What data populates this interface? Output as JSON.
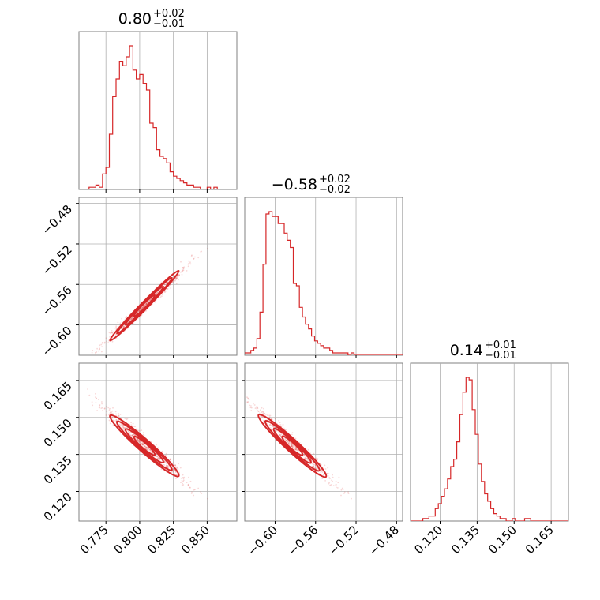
{
  "chart_data": {
    "type": "corner",
    "color": "#d62728",
    "grid": true,
    "parameters": [
      {
        "median": 0.8,
        "title": "0.80",
        "err_plus": "+0.02",
        "err_minus": "−0.01",
        "range": [
          0.755,
          0.872
        ],
        "ticks": [
          0.775,
          0.8,
          0.825,
          0.85
        ],
        "tick_labels": [
          "0.775",
          "0.800",
          "0.825",
          "0.850"
        ],
        "histogram": {
          "bin_edges_start": 0.755,
          "bin_width": 0.0025,
          "counts": [
            0,
            0,
            0,
            1,
            1,
            2,
            1,
            7,
            10,
            25,
            42,
            50,
            58,
            56,
            60,
            65,
            54,
            50,
            52,
            48,
            45,
            30,
            28,
            18,
            15,
            14,
            12,
            8,
            6,
            5,
            4,
            3,
            2,
            2,
            1,
            1,
            0,
            0,
            1,
            0,
            1,
            0,
            0,
            0,
            0,
            0,
            0
          ]
        }
      },
      {
        "median": -0.58,
        "title": "−0.58",
        "err_plus": "+0.02",
        "err_minus": "−0.02",
        "range": [
          -0.63,
          -0.474
        ],
        "ticks": [
          -0.6,
          -0.56,
          -0.52,
          -0.48
        ],
        "tick_labels": [
          "−0.60",
          "−0.56",
          "−0.52",
          "−0.48"
        ],
        "histogram": {
          "bin_edges_start": -0.63,
          "bin_width": 0.003,
          "counts": [
            1,
            1,
            2,
            3,
            7,
            18,
            38,
            59,
            60,
            58,
            58,
            55,
            55,
            51,
            48,
            45,
            30,
            29,
            20,
            16,
            13,
            11,
            8,
            6,
            5,
            4,
            3,
            3,
            2,
            1,
            1,
            1,
            1,
            1,
            0,
            1,
            0,
            0,
            0,
            0,
            0,
            0,
            0,
            0,
            0,
            0,
            0,
            0,
            0,
            0,
            0,
            0
          ]
        }
      },
      {
        "median": 0.14,
        "title": "0.14",
        "err_plus": "+0.01",
        "err_minus": "−0.01",
        "range": [
          0.108,
          0.172
        ],
        "ticks": [
          0.12,
          0.135,
          0.15,
          0.165
        ],
        "tick_labels": [
          "0.120",
          "0.135",
          "0.150",
          "0.165"
        ],
        "histogram": {
          "bin_edges_start": 0.108,
          "bin_width": 0.00125,
          "counts": [
            0,
            0,
            0,
            0,
            1,
            1,
            2,
            2,
            5,
            7,
            10,
            13,
            17,
            22,
            25,
            32,
            43,
            52,
            58,
            57,
            45,
            35,
            23,
            16,
            11,
            8,
            5,
            3,
            2,
            1,
            1,
            0,
            0,
            1,
            0,
            0,
            0,
            1,
            1,
            0,
            0,
            0,
            0,
            0,
            0,
            0,
            0,
            0,
            0,
            0,
            0
          ]
        }
      }
    ],
    "contours": {
      "note_level_count": 4
    }
  }
}
